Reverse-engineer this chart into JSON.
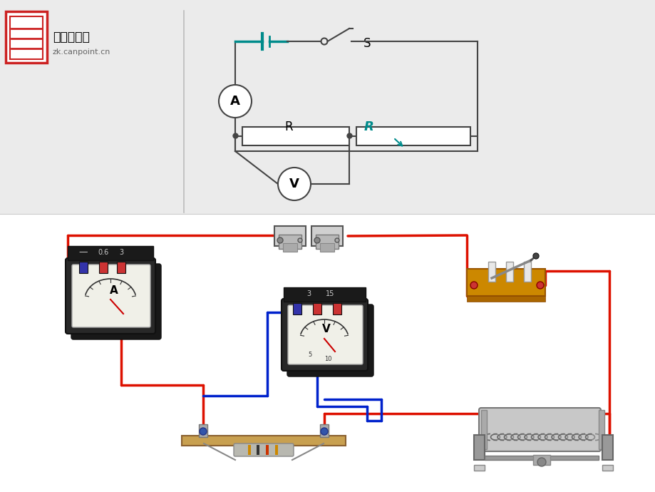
{
  "bg_color": "#ebebeb",
  "logo_text1": "全品中考网",
  "logo_text2": "zk.canpoint.cn",
  "logo_box_color": "#cc2222",
  "teal_color": "#008B8B",
  "circuit_line_color": "#444444",
  "switch_label": "S",
  "ammeter_label": "A",
  "voltmeter_label": "V",
  "R_label": "R",
  "R_var_label": "R",
  "wire_red": "#dd1100",
  "wire_blue": "#0022cc",
  "bottom_bg": "#ffffff",
  "divider_color": "#bbbbbb",
  "schematic_bg": "#ebebeb",
  "physical_bg": "#ffffff"
}
